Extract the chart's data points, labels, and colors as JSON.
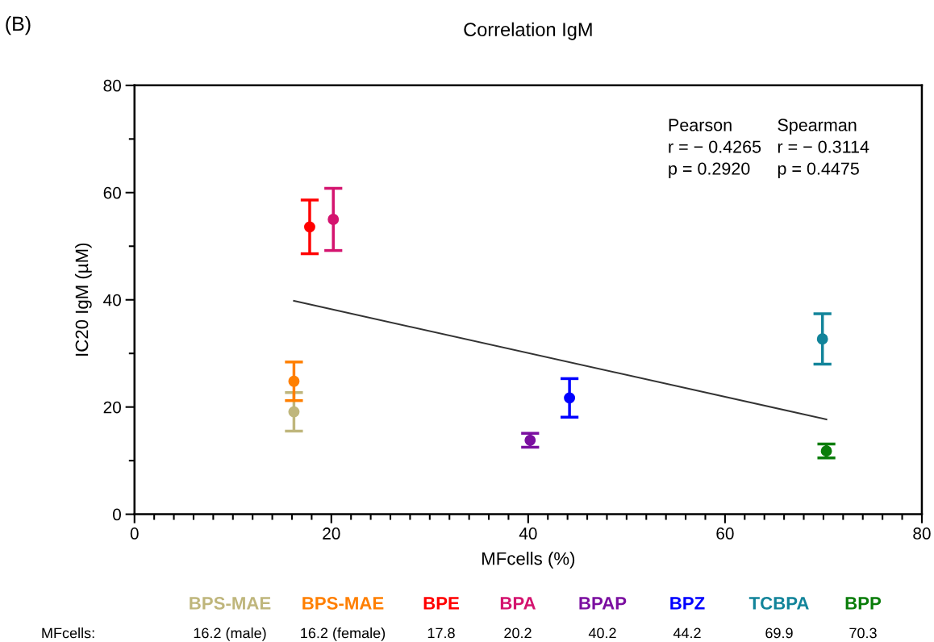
{
  "chart_data": {
    "type": "scatter",
    "title": "Correlation IgM",
    "xlabel": "MFcells (%)",
    "ylabel": "IC20 IgM (µM)",
    "xlim": [
      0,
      80
    ],
    "xticks": [
      0,
      20,
      40,
      60,
      80
    ],
    "ylim": [
      0,
      80
    ],
    "yticks": [
      0,
      20,
      40,
      60,
      80
    ],
    "grid": false,
    "marker": "circle",
    "legend": "bottom",
    "series": [
      {
        "name": "BPS-MAE",
        "color": "#bfb67c",
        "x": [
          16.2
        ],
        "values": [
          19.1
        ],
        "errors": [
          3.6
        ]
      },
      {
        "name": "BPS-MAE",
        "color": "#ff7f00",
        "x": [
          16.2
        ],
        "values": [
          24.8
        ],
        "errors": [
          3.6
        ]
      },
      {
        "name": "BPE",
        "color": "#ff0000",
        "x": [
          17.8
        ],
        "values": [
          53.6
        ],
        "errors": [
          5.0
        ]
      },
      {
        "name": "BPA",
        "color": "#d4146f",
        "x": [
          20.2
        ],
        "values": [
          55.0
        ],
        "errors": [
          5.8
        ]
      },
      {
        "name": "BPAP",
        "color": "#7b0fa0",
        "x": [
          40.2
        ],
        "values": [
          13.8
        ],
        "errors": [
          1.3
        ]
      },
      {
        "name": "BPZ",
        "color": "#0000ff",
        "x": [
          44.2
        ],
        "values": [
          21.7
        ],
        "errors": [
          3.6
        ]
      },
      {
        "name": "TCBPA",
        "color": "#12849a",
        "x": [
          69.9
        ],
        "values": [
          32.7
        ],
        "errors": [
          4.7
        ]
      },
      {
        "name": "BPP",
        "color": "#0a7d0a",
        "x": [
          70.3
        ],
        "values": [
          11.8
        ],
        "errors": [
          1.3
        ]
      },
      {
        "type": "line",
        "marker": "none",
        "color": "#333333",
        "x": [
          16.2,
          70.3
        ],
        "values": [
          39.8,
          17.7
        ]
      }
    ],
    "annotations": [
      "(B)",
      "Pearson",
      "Spearman",
      "r = − 0.4265",
      "r = − 0.3114",
      "p = 0.2920",
      "p = 0.4475",
      "MFcells:",
      "16.2 (male)",
      "16.2 (female)",
      "17.8",
      "20.2",
      "40.2",
      "44.2",
      "69.9",
      "70.3"
    ]
  }
}
